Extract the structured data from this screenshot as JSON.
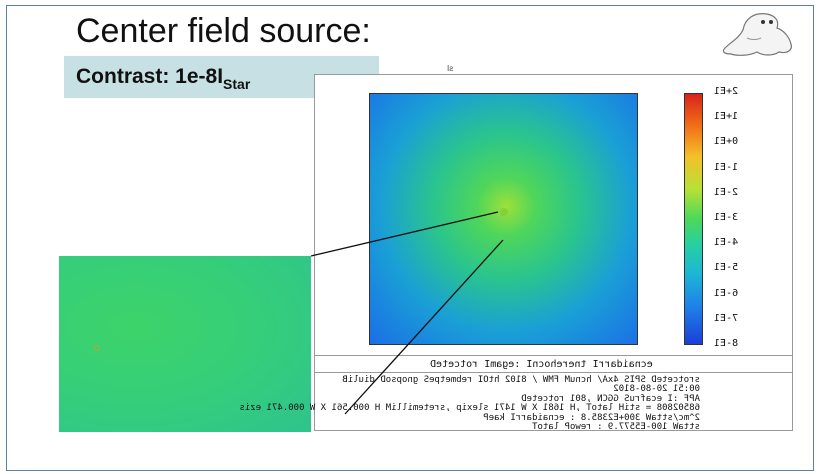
{
  "slide": {
    "title": "Center field source:",
    "contrast_prefix": "Contrast: 1e-8I",
    "contrast_sub": "Star",
    "above_mark": "sI"
  },
  "plot": {
    "colorbar_ticks": [
      "2+E1",
      "1+E1",
      "0+E1",
      "1-E1",
      "2-E1",
      "3-E1",
      "4-E1",
      "5-E1",
      "6-E1",
      "7-E1",
      "8-E1"
    ],
    "caption": "ecnaidarrI tnerehocnI :egamI rotceteD",
    "info_lines": [
      "srotceteD SPIS 4xA/ hcnuM FMW / 8102 htOI rebmetpeS gnopsoD diuliB",
      "00:51 20-80-8102",
      "APF :I ecafruS GGCN ,801 rotceteD",
      "68502808 = stiH latoT ,H 1681 X W 1471 slexip ,sretemilliM H 000.561 X W 000.471 ezis",
      "2^mc/sttaW 300+E2385.8 : ecnaidarrI kaeP",
      "sttaW 100-E5577.9 :  rewoP latoT"
    ]
  },
  "colors": {
    "frame": "#5a7fa8",
    "contrast_bg": "#c6e0e4"
  }
}
